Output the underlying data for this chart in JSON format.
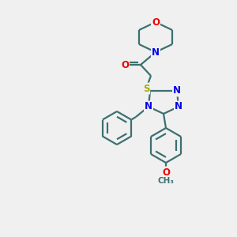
{
  "bg_color": "#f0f0f0",
  "atom_colors": {
    "C": "#3d7070",
    "N": "#0000ee",
    "O": "#ee0000",
    "S": "#aaaa00"
  },
  "bond_color": "#3d7070",
  "line_width": 1.6,
  "font_size_atom": 8.5
}
